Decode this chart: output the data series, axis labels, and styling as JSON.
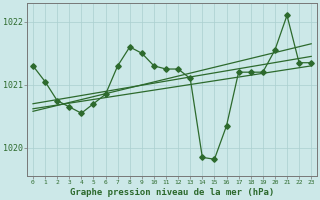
{
  "xlabel": "Graphe pression niveau de la mer (hPa)",
  "background_color": "#cce8e8",
  "line_color": "#2d6a2d",
  "grid_color": "#aacfcf",
  "xlim": [
    -0.5,
    23.5
  ],
  "ylim": [
    1019.55,
    1022.3
  ],
  "yticks": [
    1020,
    1021,
    1022
  ],
  "ytick_labels": [
    "1020",
    "1021",
    "1022"
  ],
  "xticks": [
    0,
    1,
    2,
    3,
    4,
    5,
    6,
    7,
    8,
    9,
    10,
    11,
    12,
    13,
    14,
    15,
    16,
    17,
    18,
    19,
    20,
    21,
    22,
    23
  ],
  "data_x": [
    0,
    1,
    2,
    3,
    4,
    5,
    6,
    7,
    8,
    9,
    10,
    11,
    12,
    13,
    14,
    15,
    16,
    17,
    18,
    19,
    20,
    21,
    22,
    23
  ],
  "data_y": [
    1021.3,
    1021.05,
    1020.75,
    1020.65,
    1020.55,
    1020.7,
    1020.85,
    1021.3,
    1021.6,
    1021.5,
    1021.3,
    1021.25,
    1021.25,
    1021.1,
    1019.85,
    1019.82,
    1020.35,
    1021.2,
    1021.2,
    1021.2,
    1021.55,
    1022.1,
    1021.35,
    1021.35
  ],
  "trend1_x": [
    0,
    23
  ],
  "trend1_y": [
    1020.7,
    1021.45
  ],
  "trend2_x": [
    0,
    23
  ],
  "trend2_y": [
    1020.62,
    1021.3
  ],
  "trend3_x": [
    0,
    23
  ],
  "trend3_y": [
    1020.58,
    1021.65
  ],
  "marker_size": 2.8,
  "linewidth": 0.9
}
